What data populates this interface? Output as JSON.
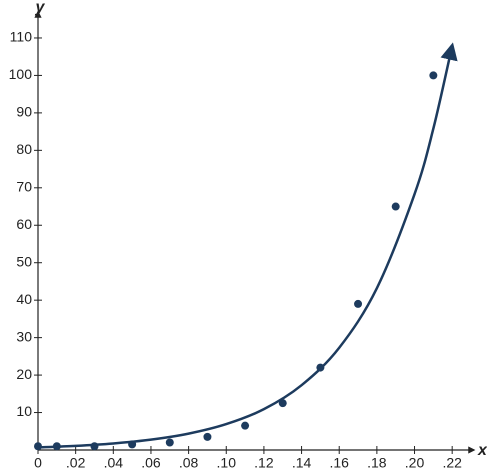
{
  "chart_data": {
    "type": "scatter",
    "x_label": "x",
    "y_label": "y",
    "xlim": [
      0,
      0.23
    ],
    "ylim": [
      0,
      118
    ],
    "xticks": [
      0,
      {
        "value": 0.02,
        "label": ".02"
      },
      {
        "value": 0.04,
        "label": ".04"
      },
      {
        "value": 0.06,
        "label": ".06"
      },
      {
        "value": 0.08,
        "label": ".08"
      },
      {
        "value": 0.1,
        "label": ".10"
      },
      {
        "value": 0.12,
        "label": ".12"
      },
      {
        "value": 0.14,
        "label": ".14"
      },
      {
        "value": 0.16,
        "label": ".16"
      },
      {
        "value": 0.18,
        "label": ".18"
      },
      {
        "value": 0.2,
        "label": ".20"
      },
      {
        "value": 0.22,
        "label": ".22"
      }
    ],
    "yticks": [
      10,
      20,
      30,
      40,
      50,
      60,
      70,
      80,
      90,
      100,
      110
    ],
    "series": [
      {
        "type": "scatter",
        "color": "#1d3b5e",
        "x": [
          0,
          0.01,
          0.03,
          0.05,
          0.07,
          0.09,
          0.11,
          0.13,
          0.15,
          0.17,
          0.19,
          0.21
        ],
        "values": [
          1,
          1,
          1,
          1.5,
          2,
          3.5,
          6.5,
          12.5,
          22,
          39,
          65,
          100
        ]
      },
      {
        "type": "line",
        "color": "#1d3b5e",
        "x": [
          0,
          0.02,
          0.04,
          0.06,
          0.08,
          0.1,
          0.12,
          0.14,
          0.16,
          0.18,
          0.2,
          0.21,
          0.22
        ],
        "values": [
          0.7,
          1.11,
          1.75,
          2.77,
          4.37,
          6.91,
          10.9,
          17.3,
          27.3,
          43.2,
          68.3,
          85.8,
          107.9
        ]
      }
    ]
  }
}
